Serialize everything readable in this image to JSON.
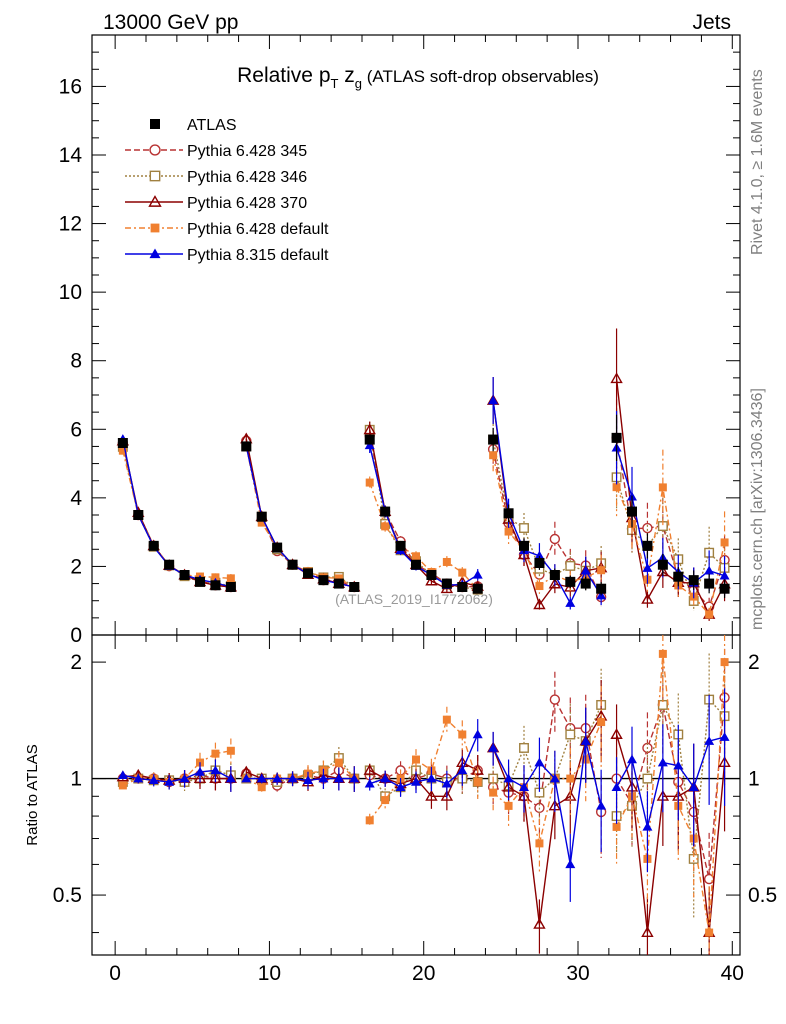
{
  "header": {
    "energy": "13000 GeV pp",
    "category": "Jets"
  },
  "side_labels": {
    "rivet": "Rivet 4.1.0, ≥ 1.6M events",
    "mcplots": "mcplots.cern.ch [arXiv:1306.3436]"
  },
  "watermark": "(ATLAS_2019_I1772062)",
  "chart_data": {
    "type": "scatter",
    "title": {
      "main": "Relative p",
      "sub_T": "T",
      "z": " z",
      "sub_g": "g",
      "rest": " (ATLAS soft-drop observables)"
    },
    "ratio_ylabel": "Ratio to ATLAS",
    "xlim": [
      -1.5,
      40.5
    ],
    "main_ylim": [
      0,
      17.5
    ],
    "ratio_ylim": [
      0.35,
      2.35
    ],
    "x_ticks": [
      0,
      10,
      20,
      30,
      40
    ],
    "main_y_ticks": [
      0,
      2,
      4,
      6,
      8,
      10,
      12,
      14,
      16
    ],
    "ratio_y_ticks": [
      0.5,
      1,
      2
    ],
    "ratio_tick_labels": [
      "0.5",
      "1",
      "2"
    ],
    "x": [
      0.5,
      1.5,
      2.5,
      3.5,
      4.5,
      5.5,
      6.5,
      7.5,
      8.5,
      9.5,
      10.5,
      11.5,
      12.5,
      13.5,
      14.5,
      15.5,
      16.5,
      17.5,
      18.5,
      19.5,
      20.5,
      21.5,
      22.5,
      23.5,
      24.5,
      25.5,
      26.5,
      27.5,
      28.5,
      29.5,
      30.5,
      31.5,
      32.5,
      33.5,
      34.5,
      35.5,
      36.5,
      37.5,
      38.5,
      39.5
    ],
    "atlas": [
      5.6,
      3.5,
      2.6,
      2.05,
      1.75,
      1.55,
      1.45,
      1.4,
      5.5,
      3.45,
      2.55,
      2.05,
      1.8,
      1.6,
      1.5,
      1.4,
      5.7,
      3.6,
      2.6,
      2.05,
      1.75,
      1.5,
      1.4,
      1.35,
      5.7,
      3.55,
      2.6,
      2.1,
      1.75,
      1.55,
      1.5,
      1.35,
      5.75,
      3.6,
      2.6,
      2.05,
      1.7,
      1.6,
      1.5,
      1.35
    ],
    "series": [
      {
        "name": "Pythia 6.428 345",
        "color": "#b83232",
        "marker": "circle-open",
        "dash": "6,3",
        "ratio": [
          1.0,
          1.0,
          1.0,
          0.98,
          1.0,
          1.02,
          1.0,
          1.0,
          1.03,
          0.98,
          0.96,
          1.0,
          1.02,
          1.0,
          1.05,
          1.0,
          1.02,
          1.0,
          1.05,
          1.0,
          1.03,
          1.0,
          1.0,
          1.05,
          0.95,
          0.92,
          0.9,
          0.84,
          1.6,
          1.35,
          1.35,
          0.82,
          1.0,
          0.86,
          1.2,
          1.55,
          0.98,
          0.82,
          0.55,
          1.62
        ]
      },
      {
        "name": "Pythia 6.428 346",
        "color": "#a08040",
        "marker": "square-open",
        "dash": "2,2",
        "ratio": [
          0.98,
          1.0,
          0.99,
          0.99,
          0.98,
          1.0,
          1.05,
          1.02,
          1.0,
          1.0,
          0.98,
          1.0,
          1.02,
          1.05,
          1.13,
          1.0,
          1.05,
          0.9,
          0.95,
          1.05,
          1.0,
          0.98,
          1.0,
          0.98,
          1.0,
          0.96,
          1.2,
          0.92,
          1.0,
          1.3,
          1.25,
          1.55,
          0.8,
          0.85,
          1.0,
          1.55,
          1.3,
          0.62,
          1.6,
          1.45
        ]
      },
      {
        "name": "Pythia 6.428 370",
        "color": "#8b0000",
        "marker": "triangle-open",
        "dash": "",
        "ratio": [
          1.01,
          1.02,
          1.0,
          0.99,
          1.0,
          1.0,
          1.0,
          1.0,
          1.04,
          1.0,
          1.0,
          1.0,
          0.98,
          1.02,
          1.0,
          1.0,
          1.05,
          1.0,
          0.97,
          1.0,
          0.9,
          0.9,
          1.1,
          1.05,
          1.2,
          0.95,
          0.9,
          0.42,
          0.85,
          0.9,
          1.25,
          1.45,
          1.3,
          0.95,
          0.4,
          0.9,
          0.9,
          0.95,
          0.4,
          1.1
        ]
      },
      {
        "name": "Pythia 6.428 default",
        "color": "#f08030",
        "marker": "square-filled",
        "dash": "6,3,2,3",
        "ratio": [
          0.96,
          1.0,
          1.0,
          0.98,
          1.0,
          1.1,
          1.16,
          1.18,
          1.0,
          0.95,
          1.0,
          1.0,
          1.03,
          1.05,
          1.1,
          1.0,
          0.78,
          0.88,
          1.0,
          1.12,
          1.05,
          1.42,
          1.3,
          0.98,
          0.92,
          0.85,
          0.95,
          0.68,
          1.0,
          1.0,
          1.12,
          1.4,
          0.75,
          0.9,
          0.62,
          2.1,
          0.85,
          0.7,
          0.4,
          2.0
        ]
      },
      {
        "name": "Pythia 8.315 default",
        "color": "#0000e0",
        "marker": "triangle-filled",
        "dash": "",
        "ratio": [
          1.02,
          1.0,
          0.99,
          0.98,
          1.0,
          1.04,
          1.05,
          1.0,
          1.0,
          1.0,
          1.0,
          1.0,
          0.99,
          1.0,
          1.0,
          1.0,
          0.97,
          1.0,
          0.95,
          0.98,
          1.0,
          0.97,
          1.05,
          1.3,
          1.2,
          1.0,
          0.95,
          1.1,
          1.0,
          0.6,
          1.25,
          0.85,
          0.95,
          1.12,
          0.75,
          1.1,
          1.08,
          0.95,
          1.25,
          1.28
        ]
      }
    ]
  }
}
